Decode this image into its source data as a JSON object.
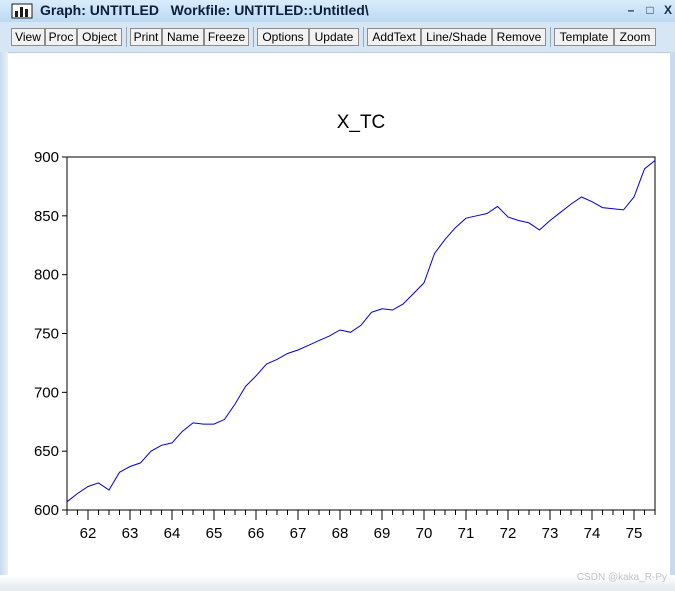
{
  "window": {
    "title": "Graph: UNTITLED   Workfile: UNTITLED::Untitled\\"
  },
  "toolbar": {
    "buttons": [
      "View",
      "Proc",
      "Object",
      "Print",
      "Name",
      "Freeze",
      "Options",
      "Update",
      "AddText",
      "Line/Shade",
      "Remove",
      "Template",
      "Zoom"
    ]
  },
  "colors": {
    "series": "#0000cc",
    "titlebar": "#c8e0f6",
    "toolbar": "#d6e6f5"
  },
  "icons": {
    "app": "bar-chart-icon",
    "minimize": "minimize-icon",
    "maximize": "maximize-icon",
    "close": "close-icon"
  },
  "watermark": "CSDN @kaka_R-Py",
  "chart_data": {
    "type": "line",
    "title": "X_TC",
    "xlabel": "",
    "ylabel": "",
    "xlim": [
      1961.5,
      1975.5
    ],
    "ylim": [
      600,
      900
    ],
    "yticks": [
      600,
      650,
      700,
      750,
      800,
      850,
      900
    ],
    "xtick_labels": [
      "62",
      "63",
      "64",
      "65",
      "66",
      "67",
      "68",
      "69",
      "70",
      "71",
      "72",
      "73",
      "74",
      "75"
    ],
    "grid": false,
    "legend": "none",
    "series": [
      {
        "x": [
          1961.5,
          1961.75,
          1962.0,
          1962.25,
          1962.5,
          1962.75,
          1963.0,
          1963.25,
          1963.5,
          1963.75,
          1964.0,
          1964.25,
          1964.5,
          1964.75,
          1965.0,
          1965.25,
          1965.5,
          1965.75,
          1966.0,
          1966.25,
          1966.5,
          1966.75,
          1967.0,
          1967.25,
          1967.5,
          1967.75,
          1968.0,
          1968.25,
          1968.5,
          1968.75,
          1969.0,
          1969.25,
          1969.5,
          1969.75,
          1970.0,
          1970.25,
          1970.5,
          1970.75,
          1971.0,
          1971.25,
          1971.5,
          1971.75,
          1972.0,
          1972.25,
          1972.5,
          1972.75,
          1973.0,
          1973.25,
          1973.5,
          1973.75,
          1974.0,
          1974.25,
          1974.5,
          1974.75,
          1975.0,
          1975.25,
          1975.5
        ],
        "y": [
          607,
          614,
          620,
          623,
          617,
          632,
          637,
          640,
          650,
          655,
          657,
          667,
          674,
          673,
          673,
          677,
          690,
          705,
          714,
          724,
          728,
          733,
          736,
          740,
          744,
          748,
          753,
          751,
          757,
          768,
          771,
          770,
          775,
          784,
          793,
          818,
          830,
          840,
          848,
          850,
          852,
          858,
          849,
          846,
          844,
          838,
          846,
          853,
          860,
          866,
          862,
          857,
          856,
          855,
          866,
          890,
          897
        ]
      }
    ]
  }
}
